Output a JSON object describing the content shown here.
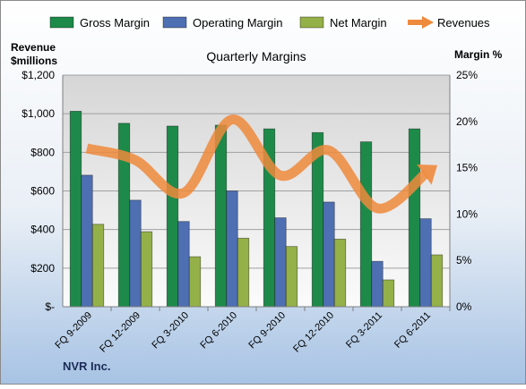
{
  "chart_data": {
    "type": "bar",
    "title": "Quarterly Margins",
    "company": "NVR Inc.",
    "left_axis_label": [
      "Revenue",
      "$millions"
    ],
    "right_axis_label": "Margin %",
    "categories": [
      "FQ 9-2009",
      "FQ 12-2009",
      "FQ 3-2010",
      "FQ 6-2010",
      "FQ 9-2010",
      "FQ 12-2010",
      "FQ 3-2011",
      "FQ 6-2011"
    ],
    "left_ticks": [
      "$-",
      "$200",
      "$400",
      "$600",
      "$800",
      "$1,000",
      "$1,200"
    ],
    "right_ticks": [
      "0%",
      "5%",
      "10%",
      "15%",
      "20%",
      "25%"
    ],
    "ylim_left": [
      0,
      1200
    ],
    "ylim_right": [
      0,
      25
    ],
    "legend_position": "top",
    "grid": true,
    "series": [
      {
        "name": "Gross Margin",
        "axis": "right",
        "kind": "bar",
        "color": "#1e8a4a",
        "values": [
          21.1,
          19.8,
          19.5,
          19.6,
          19.2,
          18.8,
          17.8,
          19.2
        ]
      },
      {
        "name": "Operating Margin",
        "axis": "right",
        "kind": "bar",
        "color": "#4f6fb3",
        "values": [
          14.2,
          11.5,
          9.2,
          12.5,
          9.6,
          11.3,
          4.9,
          9.5
        ]
      },
      {
        "name": "Net Margin",
        "axis": "right",
        "kind": "bar",
        "color": "#94b048",
        "values": [
          8.9,
          8.1,
          5.4,
          7.4,
          6.5,
          7.3,
          2.9,
          5.6
        ]
      },
      {
        "name": "Revenues",
        "axis": "left",
        "kind": "line",
        "color": "#ee8a3c",
        "values": [
          820,
          760,
          590,
          970,
          680,
          810,
          510,
          690
        ]
      }
    ]
  }
}
